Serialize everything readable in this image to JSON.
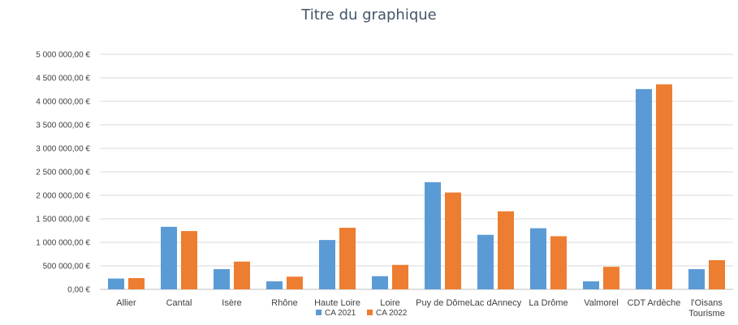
{
  "chart_data": {
    "type": "bar",
    "title": "Titre du graphique",
    "categories": [
      "Allier",
      "Cantal",
      "Isère",
      "Rhône",
      "Haute Loire",
      "Loire",
      "Puy de Dôme",
      "Lac dAnnecy",
      "La Drôme",
      "Valmorel",
      "CDT Ardèche",
      "l'Oisans Tourisme"
    ],
    "series": [
      {
        "name": "CA 2021",
        "color": "#5b9bd5",
        "values": [
          230000,
          1330000,
          430000,
          170000,
          1050000,
          280000,
          2280000,
          1160000,
          1300000,
          170000,
          4260000,
          430000
        ]
      },
      {
        "name": "CA 2022",
        "color": "#ed7d31",
        "values": [
          240000,
          1240000,
          590000,
          270000,
          1310000,
          520000,
          2060000,
          1660000,
          1130000,
          480000,
          4360000,
          620000
        ]
      }
    ],
    "ylim": [
      0,
      5000000
    ],
    "yticks": [
      0,
      500000,
      1000000,
      1500000,
      2000000,
      2500000,
      3000000,
      3500000,
      4000000,
      4500000,
      5000000
    ],
    "ytick_labels": [
      "0,00 €",
      "500 000,00 €",
      "1 000 000,00 €",
      "1 500 000,00 €",
      "2 000 000,00 €",
      "2 500 000,00 €",
      "3 000 000,00 €",
      "3 500 000,00 €",
      "4 000 000,00 €",
      "4 500 000,00 €",
      "5 000 000,00 €"
    ],
    "grid": true,
    "legend_position": "bottom"
  }
}
